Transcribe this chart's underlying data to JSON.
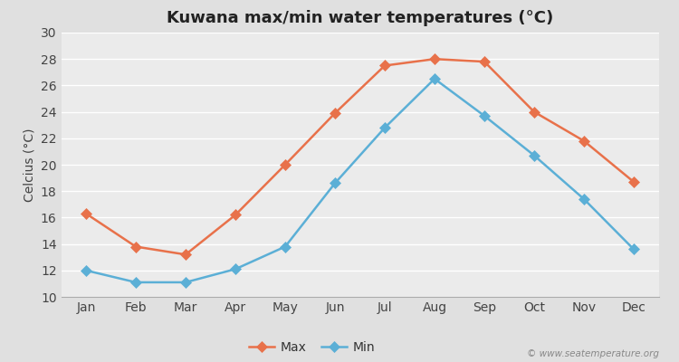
{
  "title": "Kuwana max/min water temperatures (°C)",
  "ylabel": "Celcius (°C)",
  "months": [
    "Jan",
    "Feb",
    "Mar",
    "Apr",
    "May",
    "Jun",
    "Jul",
    "Aug",
    "Sep",
    "Oct",
    "Nov",
    "Dec"
  ],
  "max_temps": [
    16.3,
    13.8,
    13.2,
    16.2,
    20.0,
    23.9,
    27.5,
    28.0,
    27.8,
    24.0,
    21.8,
    18.7
  ],
  "min_temps": [
    12.0,
    11.1,
    11.1,
    12.1,
    13.8,
    18.6,
    22.8,
    26.5,
    23.7,
    20.7,
    17.4,
    13.6
  ],
  "max_color": "#e8714a",
  "min_color": "#5bafd6",
  "fig_bg_color": "#e0e0e0",
  "plot_bg_color": "#ebebeb",
  "grid_color": "#ffffff",
  "ylim": [
    10,
    30
  ],
  "yticks": [
    10,
    12,
    14,
    16,
    18,
    20,
    22,
    24,
    26,
    28,
    30
  ],
  "marker": "D",
  "markersize": 6,
  "linewidth": 1.8,
  "title_fontsize": 13,
  "label_fontsize": 10,
  "tick_fontsize": 10,
  "legend_labels": [
    "Max",
    "Min"
  ],
  "watermark": "© www.seatemperature.org"
}
